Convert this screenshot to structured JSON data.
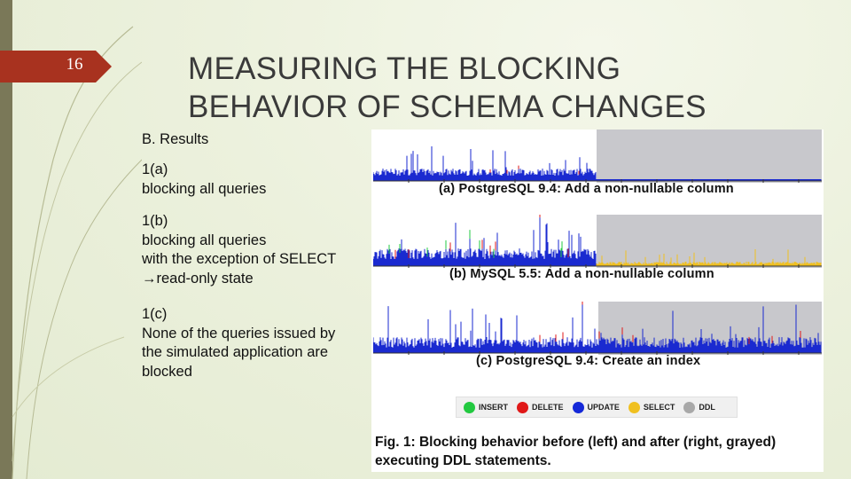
{
  "slide": {
    "number": "16",
    "title_line1": "MEASURING THE BLOCKING",
    "title_line2": "BEHAVIOR OF SCHEMA CHANGES"
  },
  "body": {
    "heading": "B. Results",
    "a_id": "1(a)",
    "a_text": "blocking all queries",
    "b_id": "1(b)",
    "b_line1": "blocking all queries",
    "b_line2": "with the exception of SELECT",
    "b_line3": "→read-only state",
    "c_id": "1(c)",
    "c_line1": "None of the queries issued by",
    "c_line2": "the simulated application are",
    "c_line3": "blocked"
  },
  "figure": {
    "panels": [
      {
        "caption": "(a) PostgreSQL 9.4: Add a non-nullable column"
      },
      {
        "caption": "(b) MySQL 5.5: Add a non-nullable column"
      },
      {
        "caption": "(c) PostgreSQL 9.4: Create an index"
      }
    ],
    "legend": [
      {
        "label": "INSERT",
        "color": "#22c940"
      },
      {
        "label": "DELETE",
        "color": "#e01818"
      },
      {
        "label": "UPDATE",
        "color": "#1428d8"
      },
      {
        "label": "SELECT",
        "color": "#f0c020"
      },
      {
        "label": "DDL",
        "color": "#a8a8a8"
      }
    ],
    "caption_line1": "Fig. 1: Blocking behavior before (left) and after (right, grayed)",
    "caption_line2": "executing DDL statements."
  },
  "colors": {
    "accent_tab": "#a8321f",
    "gray_region": "#c8c8cc",
    "bar_blue": "#1a2ad0"
  }
}
